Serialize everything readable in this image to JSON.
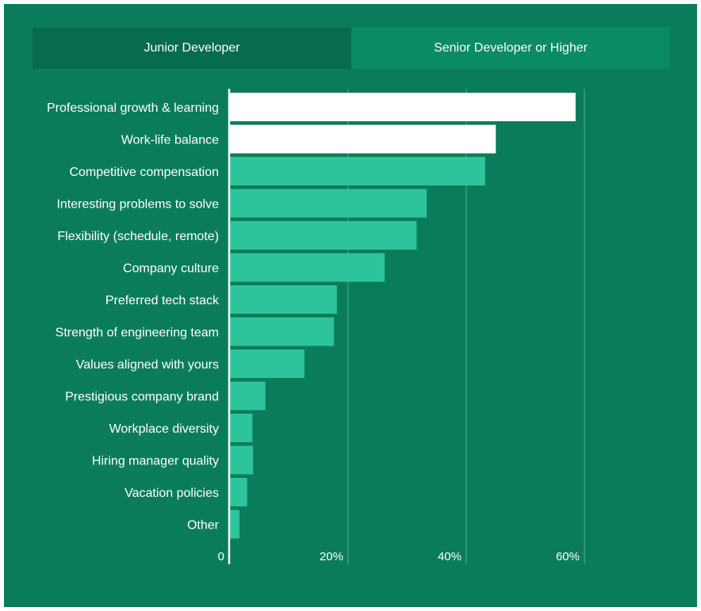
{
  "tabs": [
    {
      "label": "Junior Developer",
      "active": false
    },
    {
      "label": "Senior Developer or Higher",
      "active": true
    }
  ],
  "colors": {
    "background": "#0a7c5c",
    "bar": "#2ec49b",
    "bar_highlight": "#ffffff",
    "text": "#ffffff",
    "grid": "#4fae8f"
  },
  "chart_data": {
    "type": "bar",
    "orientation": "horizontal",
    "categories": [
      "Professional growth & learning",
      "Work-life balance",
      "Competitive compensation",
      "Interesting problems to solve",
      "Flexibility (schedule, remote)",
      "Company culture",
      "Preferred tech stack",
      "Strength of engineering team",
      "Values aligned with yours",
      "Prestigious company brand",
      "Workplace diversity",
      "Hiring manager quality",
      "Vacation policies",
      "Other"
    ],
    "values": [
      58.5,
      45,
      43.2,
      33.3,
      31.6,
      26.2,
      18.1,
      17.6,
      12.6,
      6.0,
      3.8,
      3.9,
      2.9,
      1.6
    ],
    "highlighted": [
      true,
      true,
      false,
      false,
      false,
      false,
      false,
      false,
      false,
      false,
      false,
      false,
      false,
      false
    ],
    "xlim": [
      0,
      60
    ],
    "xticks": [
      0,
      20,
      40,
      60
    ],
    "xtick_labels": [
      "0",
      "20%",
      "40%",
      "60%"
    ],
    "grid": true,
    "title": "",
    "xlabel": "",
    "ylabel": ""
  }
}
